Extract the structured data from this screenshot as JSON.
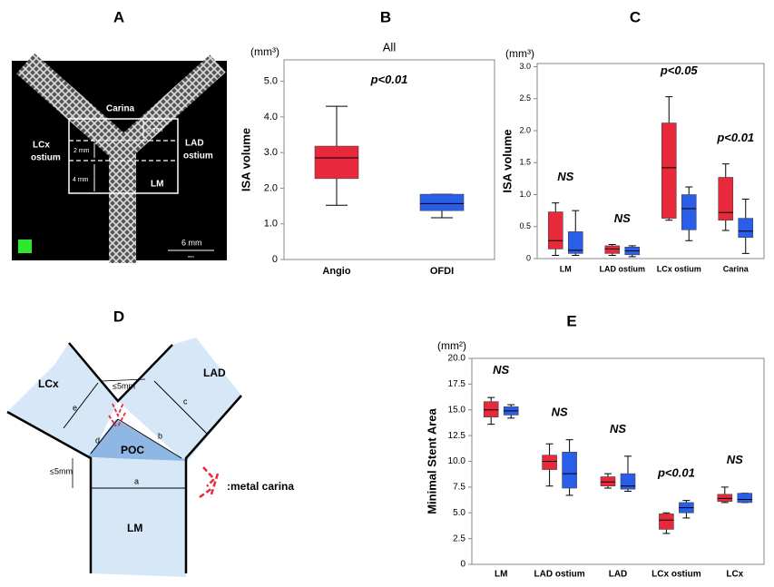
{
  "panel_letters": [
    "A",
    "B",
    "C",
    "D",
    "E"
  ],
  "panel_a": {
    "carina": "Carina",
    "lcx": "LCx",
    "lcx2": "ostium",
    "lad": "LAD",
    "lad2": "ostium",
    "lm": "LM",
    "mm2a": "2 mm",
    "mm2b": "2 mm",
    "mm4": "4 mm",
    "scale": "6 mm",
    "scale_small": "mm"
  },
  "panel_d": {
    "lcx": "LCx",
    "lad": "LAD",
    "poc": "POC",
    "lm": "LM",
    "a": "a",
    "b": "b",
    "c": "c",
    "d": "d",
    "e": "e",
    "lim_top": "≤5mm",
    "lim_left": "≤5mm",
    "legend": ":metal carina"
  },
  "chart_data": [
    {
      "type": "box",
      "title": "All",
      "y_label": "ISA volume",
      "unit": "(mm³)",
      "annotation": "p<0.01",
      "categories": [
        "Angio",
        "OFDI"
      ],
      "colors": [
        "#e8293b",
        "#2a5ee8"
      ],
      "values": [
        {
          "min": 1.52,
          "q1": 2.27,
          "median": 2.85,
          "q3": 3.18,
          "max": 4.3
        },
        {
          "min": 1.17,
          "q1": 1.37,
          "median": 1.57,
          "q3": 1.83,
          "max": 1.83
        }
      ],
      "ylim": [
        0,
        5.6
      ],
      "yticks": [
        0,
        {
          "value": 1,
          "label": "1.0"
        },
        {
          "value": 2,
          "label": "2.0"
        },
        {
          "value": 3,
          "label": "3.0"
        },
        {
          "value": 4,
          "label": "4.0"
        },
        {
          "value": 5,
          "label": "5.0"
        }
      ]
    },
    {
      "type": "box",
      "y_label": "ISA volume",
      "unit": "(mm³)",
      "categories": [
        "LM",
        "LAD ostium",
        "LCx ostium",
        "Carina"
      ],
      "annotations": [
        "NS",
        "NS",
        "p<0.05",
        "p<0.01"
      ],
      "series": [
        {
          "color": "#e8293b",
          "values": [
            {
              "min": 0.05,
              "q1": 0.15,
              "median": 0.28,
              "q3": 0.73,
              "max": 0.87
            },
            {
              "min": 0.05,
              "q1": 0.08,
              "median": 0.15,
              "q3": 0.2,
              "max": 0.22
            },
            {
              "min": 0.6,
              "q1": 0.63,
              "median": 1.42,
              "q3": 2.12,
              "max": 2.53
            },
            {
              "min": 0.44,
              "q1": 0.6,
              "median": 0.72,
              "q3": 1.27,
              "max": 1.48
            }
          ]
        },
        {
          "color": "#2a5ee8",
          "values": [
            {
              "min": 0.05,
              "q1": 0.08,
              "median": 0.13,
              "q3": 0.42,
              "max": 0.75
            },
            {
              "min": 0.03,
              "q1": 0.06,
              "median": 0.12,
              "q3": 0.18,
              "max": 0.2
            },
            {
              "min": 0.28,
              "q1": 0.45,
              "median": 0.78,
              "q3": 1.0,
              "max": 1.12
            },
            {
              "min": 0.08,
              "q1": 0.33,
              "median": 0.43,
              "q3": 0.63,
              "max": 0.93
            }
          ]
        }
      ],
      "ylim": [
        0,
        3.05
      ],
      "yticks": [
        0,
        0.5,
        {
          "value": 1,
          "label": "1.0"
        },
        1.5,
        {
          "value": 2,
          "label": "2.0"
        },
        2.5,
        {
          "value": 3,
          "label": "3.0"
        }
      ]
    },
    {
      "type": "box",
      "y_label": "Minimal Stent Area",
      "unit": "(mm²)",
      "categories": [
        "LM",
        "LAD ostium",
        "LAD",
        "LCx ostium",
        "LCx"
      ],
      "annotations": [
        "NS",
        "NS",
        "NS",
        "p<0.01",
        "NS"
      ],
      "series": [
        {
          "color": "#e8293b",
          "values": [
            {
              "min": 13.6,
              "q1": 14.3,
              "median": 15.0,
              "q3": 15.8,
              "max": 16.2
            },
            {
              "min": 7.6,
              "q1": 9.2,
              "median": 10.0,
              "q3": 10.6,
              "max": 11.7
            },
            {
              "min": 7.4,
              "q1": 7.6,
              "median": 8.0,
              "q3": 8.5,
              "max": 8.8
            },
            {
              "min": 3.0,
              "q1": 3.4,
              "median": 4.3,
              "q3": 4.9,
              "max": 5.0
            },
            {
              "min": 6.0,
              "q1": 6.1,
              "median": 6.4,
              "q3": 6.8,
              "max": 7.5
            }
          ]
        },
        {
          "color": "#2a5ee8",
          "values": [
            {
              "min": 14.2,
              "q1": 14.5,
              "median": 14.9,
              "q3": 15.3,
              "max": 15.5
            },
            {
              "min": 6.7,
              "q1": 7.4,
              "median": 8.8,
              "q3": 10.9,
              "max": 12.1
            },
            {
              "min": 7.1,
              "q1": 7.3,
              "median": 7.6,
              "q3": 8.8,
              "max": 10.5
            },
            {
              "min": 4.5,
              "q1": 5.0,
              "median": 5.5,
              "q3": 6.0,
              "max": 6.2
            },
            {
              "min": 6.0,
              "q1": 6.0,
              "median": 6.3,
              "q3": 6.9,
              "max": 6.9
            }
          ]
        }
      ],
      "ylim": [
        0,
        20
      ],
      "yticks": [
        0,
        2.5,
        {
          "value": 5,
          "label": "5.0"
        },
        7.5,
        {
          "value": 10,
          "label": "10.0"
        },
        12.5,
        {
          "value": 15,
          "label": "15.0"
        },
        17.5,
        {
          "value": 20,
          "label": "20.0"
        }
      ]
    }
  ]
}
